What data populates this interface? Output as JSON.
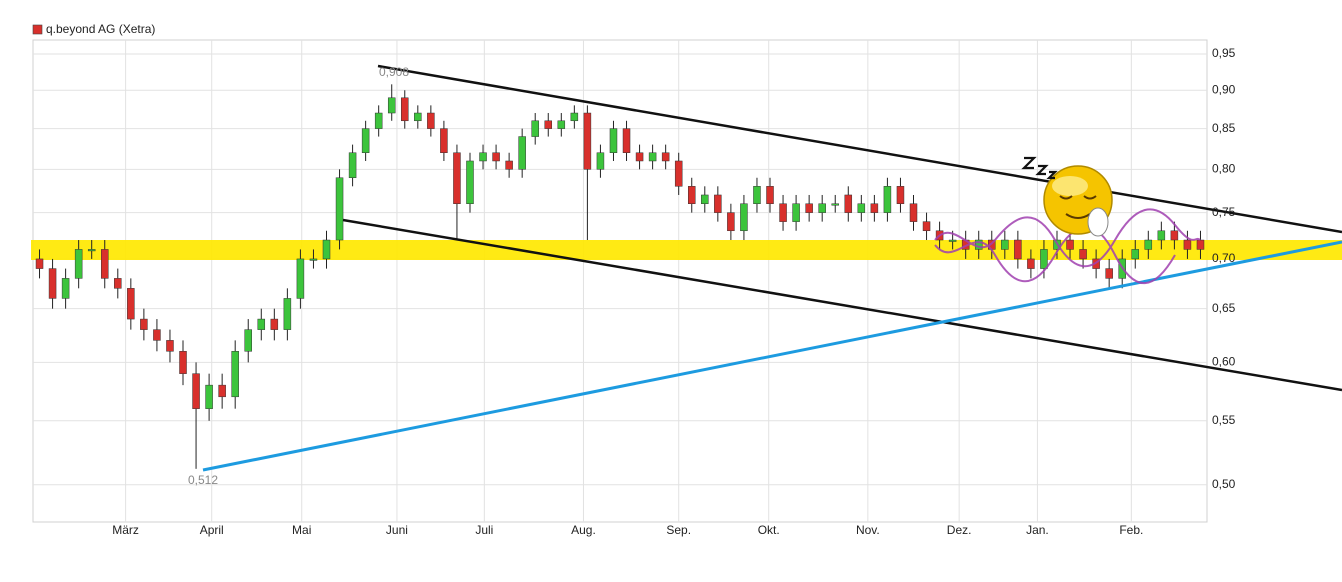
{
  "chart_data": {
    "type": "candlestick",
    "title": "q.beyond AG (Xetra)",
    "ylog": true,
    "grid": true,
    "up_color": "#3cc43c",
    "down_color": "#d8302c",
    "ylim": [
      0.473,
      0.97
    ],
    "yticks": [
      {
        "value": 0.5,
        "label": "0,50"
      },
      {
        "value": 0.55,
        "label": "0,55"
      },
      {
        "value": 0.6,
        "label": "0,60"
      },
      {
        "value": 0.65,
        "label": "0,65"
      },
      {
        "value": 0.7,
        "label": "0,70"
      },
      {
        "value": 0.75,
        "label": "0,75"
      },
      {
        "value": 0.8,
        "label": "0,80"
      },
      {
        "value": 0.85,
        "label": "0,85"
      },
      {
        "value": 0.9,
        "label": "0,90"
      },
      {
        "value": 0.95,
        "label": "0,95"
      }
    ],
    "xticks": [
      {
        "value": 6.6,
        "label": "März"
      },
      {
        "value": 13.2,
        "label": "April"
      },
      {
        "value": 20.1,
        "label": "Mai"
      },
      {
        "value": 27.4,
        "label": "Juni"
      },
      {
        "value": 34.1,
        "label": "Juli"
      },
      {
        "value": 41.7,
        "label": "Aug."
      },
      {
        "value": 49.0,
        "label": "Sep."
      },
      {
        "value": 55.9,
        "label": "Okt."
      },
      {
        "value": 63.5,
        "label": "Nov."
      },
      {
        "value": 70.5,
        "label": "Dez."
      },
      {
        "value": 76.5,
        "label": "Jan."
      },
      {
        "value": 83.7,
        "label": "Feb."
      }
    ],
    "annotations": [
      "0,908",
      "0,512"
    ],
    "open": [
      0.7,
      0.69,
      0.66,
      0.68,
      0.71,
      0.71,
      0.68,
      0.67,
      0.64,
      0.63,
      0.62,
      0.61,
      0.59,
      0.56,
      0.58,
      0.57,
      0.61,
      0.63,
      0.64,
      0.63,
      0.66,
      0.7,
      0.7,
      0.72,
      0.79,
      0.82,
      0.85,
      0.87,
      0.89,
      0.86,
      0.87,
      0.85,
      0.82,
      0.76,
      0.81,
      0.82,
      0.81,
      0.8,
      0.84,
      0.86,
      0.85,
      0.86,
      0.87,
      0.8,
      0.82,
      0.85,
      0.82,
      0.81,
      0.82,
      0.81,
      0.78,
      0.76,
      0.77,
      0.75,
      0.73,
      0.76,
      0.78,
      0.76,
      0.74,
      0.76,
      0.75,
      0.76,
      0.77,
      0.75,
      0.76,
      0.75,
      0.78,
      0.76,
      0.74,
      0.73,
      0.72,
      0.72,
      0.71,
      0.72,
      0.71,
      0.72,
      0.7,
      0.69,
      0.71,
      0.72,
      0.71,
      0.7,
      0.69,
      0.68,
      0.7,
      0.71,
      0.72,
      0.73,
      0.72,
      0.72
    ],
    "high": [
      0.71,
      0.7,
      0.69,
      0.72,
      0.72,
      0.72,
      0.69,
      0.68,
      0.65,
      0.64,
      0.63,
      0.62,
      0.6,
      0.59,
      0.59,
      0.62,
      0.64,
      0.65,
      0.65,
      0.67,
      0.71,
      0.71,
      0.73,
      0.8,
      0.83,
      0.86,
      0.88,
      0.908,
      0.9,
      0.88,
      0.88,
      0.86,
      0.83,
      0.82,
      0.83,
      0.83,
      0.82,
      0.85,
      0.87,
      0.87,
      0.87,
      0.88,
      0.88,
      0.83,
      0.86,
      0.86,
      0.83,
      0.83,
      0.83,
      0.82,
      0.79,
      0.78,
      0.78,
      0.76,
      0.77,
      0.79,
      0.79,
      0.77,
      0.77,
      0.77,
      0.77,
      0.77,
      0.78,
      0.77,
      0.77,
      0.79,
      0.79,
      0.77,
      0.75,
      0.74,
      0.73,
      0.73,
      0.73,
      0.73,
      0.73,
      0.73,
      0.71,
      0.72,
      0.73,
      0.73,
      0.72,
      0.71,
      0.7,
      0.71,
      0.72,
      0.73,
      0.74,
      0.74,
      0.73,
      0.73
    ],
    "low": [
      0.68,
      0.65,
      0.65,
      0.67,
      0.7,
      0.67,
      0.66,
      0.63,
      0.62,
      0.61,
      0.6,
      0.58,
      0.512,
      0.55,
      0.56,
      0.56,
      0.6,
      0.62,
      0.62,
      0.62,
      0.65,
      0.69,
      0.69,
      0.71,
      0.78,
      0.81,
      0.84,
      0.86,
      0.85,
      0.85,
      0.84,
      0.81,
      0.72,
      0.75,
      0.8,
      0.8,
      0.79,
      0.79,
      0.83,
      0.84,
      0.84,
      0.85,
      0.72,
      0.79,
      0.81,
      0.81,
      0.8,
      0.8,
      0.8,
      0.77,
      0.75,
      0.75,
      0.74,
      0.72,
      0.72,
      0.75,
      0.75,
      0.73,
      0.73,
      0.74,
      0.74,
      0.75,
      0.74,
      0.74,
      0.74,
      0.74,
      0.75,
      0.73,
      0.72,
      0.71,
      0.71,
      0.7,
      0.7,
      0.7,
      0.7,
      0.69,
      0.68,
      0.68,
      0.7,
      0.7,
      0.69,
      0.68,
      0.67,
      0.67,
      0.69,
      0.7,
      0.71,
      0.71,
      0.7,
      0.7
    ],
    "close": [
      0.69,
      0.66,
      0.68,
      0.71,
      0.71,
      0.68,
      0.67,
      0.64,
      0.63,
      0.62,
      0.61,
      0.59,
      0.56,
      0.58,
      0.57,
      0.61,
      0.63,
      0.64,
      0.63,
      0.66,
      0.7,
      0.7,
      0.72,
      0.79,
      0.82,
      0.85,
      0.87,
      0.89,
      0.86,
      0.87,
      0.85,
      0.82,
      0.76,
      0.81,
      0.82,
      0.81,
      0.8,
      0.84,
      0.86,
      0.85,
      0.86,
      0.87,
      0.8,
      0.82,
      0.85,
      0.82,
      0.81,
      0.82,
      0.81,
      0.78,
      0.76,
      0.77,
      0.75,
      0.73,
      0.76,
      0.78,
      0.76,
      0.74,
      0.76,
      0.75,
      0.76,
      0.76,
      0.75,
      0.76,
      0.75,
      0.78,
      0.76,
      0.74,
      0.73,
      0.72,
      0.72,
      0.71,
      0.72,
      0.71,
      0.72,
      0.7,
      0.69,
      0.71,
      0.72,
      0.71,
      0.7,
      0.69,
      0.68,
      0.7,
      0.71,
      0.72,
      0.73,
      0.72,
      0.71,
      0.71
    ]
  }
}
